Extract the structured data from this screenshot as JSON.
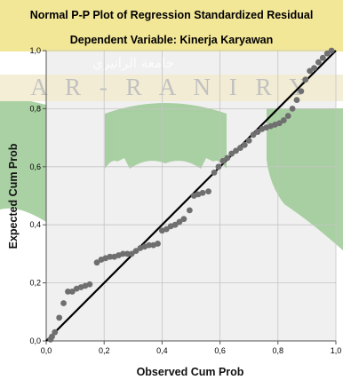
{
  "chart_data": {
    "type": "scatter",
    "title": "Normal P-P Plot of Regression Standardized Residual",
    "subtitle": "Dependent Variable: Kinerja Karyawan",
    "xlabel": "Observed Cum Prob",
    "ylabel": "Expected Cum Prob",
    "xlim": [
      0,
      1
    ],
    "ylim": [
      0,
      1
    ],
    "grid": true,
    "x_tick_labels": [
      "0,0",
      "0,2",
      "0,4",
      "0,6",
      "0,8",
      "1,0"
    ],
    "y_tick_labels": [
      "0,0",
      "0,2",
      "0,4",
      "0,6",
      "0,8",
      "1,0"
    ],
    "reference_line": {
      "from": [
        0,
        0
      ],
      "to": [
        1,
        1
      ],
      "color": "#000000"
    },
    "points": [
      [
        0.015,
        0.005
      ],
      [
        0.02,
        0.015
      ],
      [
        0.03,
        0.03
      ],
      [
        0.045,
        0.08
      ],
      [
        0.06,
        0.13
      ],
      [
        0.075,
        0.17
      ],
      [
        0.09,
        0.17
      ],
      [
        0.105,
        0.18
      ],
      [
        0.12,
        0.185
      ],
      [
        0.135,
        0.19
      ],
      [
        0.15,
        0.195
      ],
      [
        0.175,
        0.27
      ],
      [
        0.19,
        0.28
      ],
      [
        0.205,
        0.285
      ],
      [
        0.22,
        0.29
      ],
      [
        0.235,
        0.29
      ],
      [
        0.25,
        0.295
      ],
      [
        0.265,
        0.3
      ],
      [
        0.28,
        0.3
      ],
      [
        0.295,
        0.3
      ],
      [
        0.31,
        0.31
      ],
      [
        0.325,
        0.32
      ],
      [
        0.34,
        0.325
      ],
      [
        0.355,
        0.33
      ],
      [
        0.37,
        0.33
      ],
      [
        0.385,
        0.335
      ],
      [
        0.4,
        0.38
      ],
      [
        0.415,
        0.385
      ],
      [
        0.43,
        0.395
      ],
      [
        0.445,
        0.4
      ],
      [
        0.46,
        0.41
      ],
      [
        0.475,
        0.42
      ],
      [
        0.495,
        0.45
      ],
      [
        0.51,
        0.5
      ],
      [
        0.525,
        0.505
      ],
      [
        0.54,
        0.51
      ],
      [
        0.56,
        0.515
      ],
      [
        0.58,
        0.58
      ],
      [
        0.595,
        0.6
      ],
      [
        0.61,
        0.62
      ],
      [
        0.625,
        0.63
      ],
      [
        0.64,
        0.645
      ],
      [
        0.655,
        0.655
      ],
      [
        0.67,
        0.665
      ],
      [
        0.685,
        0.675
      ],
      [
        0.7,
        0.69
      ],
      [
        0.715,
        0.71
      ],
      [
        0.73,
        0.72
      ],
      [
        0.745,
        0.73
      ],
      [
        0.76,
        0.735
      ],
      [
        0.775,
        0.74
      ],
      [
        0.79,
        0.745
      ],
      [
        0.805,
        0.75
      ],
      [
        0.82,
        0.76
      ],
      [
        0.835,
        0.775
      ],
      [
        0.85,
        0.8
      ],
      [
        0.865,
        0.83
      ],
      [
        0.88,
        0.86
      ],
      [
        0.895,
        0.9
      ],
      [
        0.91,
        0.93
      ],
      [
        0.925,
        0.94
      ],
      [
        0.94,
        0.96
      ],
      [
        0.955,
        0.975
      ],
      [
        0.97,
        0.99
      ],
      [
        0.985,
        1.0
      ]
    ],
    "marker_color": "#6f6f6f",
    "colors": {
      "plot_background": "#f0f0f0",
      "grid": "#c4c4c4",
      "title_band": "#f1e38c",
      "watermark_green": "#9cca94",
      "watermark_text": "#b9b9b9"
    }
  },
  "watermark": {
    "arabic_text": "جامعة الرانيري",
    "latin_text": "A R - R A N I R Y"
  }
}
